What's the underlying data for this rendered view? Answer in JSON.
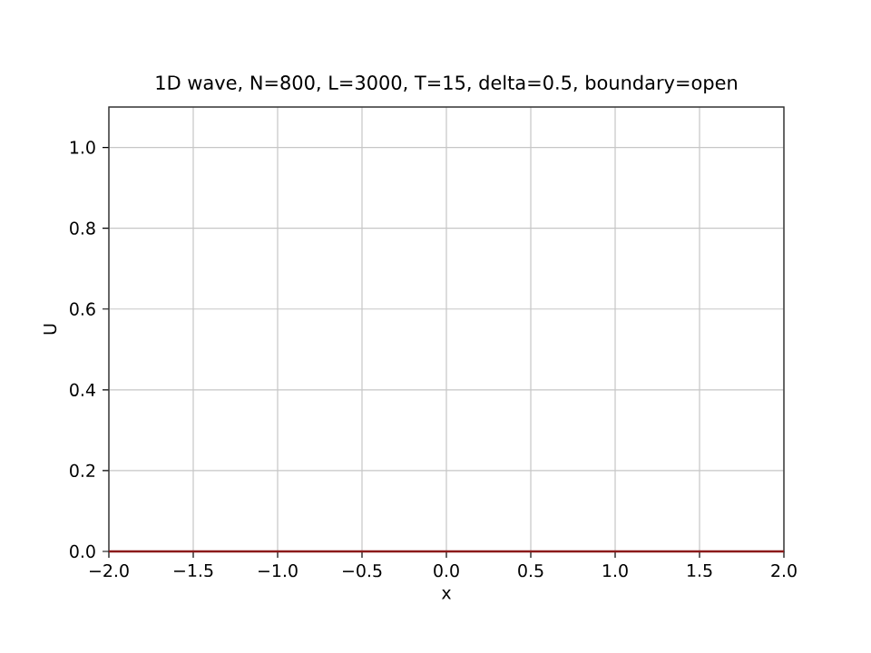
{
  "chart_data": {
    "type": "line",
    "title": "1D wave, N=800, L=3000, T=15, delta=0.5, boundary=open",
    "xlabel": "x",
    "ylabel": "U",
    "x": [
      -2.0,
      2.0
    ],
    "series": [
      {
        "color": "#8b1a1a",
        "values": [
          0,
          0
        ]
      }
    ],
    "xlim": [
      -2.0,
      2.0
    ],
    "ylim": [
      0.0,
      1.1
    ],
    "xticks": [
      {
        "value": -2.0,
        "label": "−2.0"
      },
      {
        "value": -1.5,
        "label": "−1.5"
      },
      {
        "value": -1.0,
        "label": "−1.0"
      },
      {
        "value": -0.5,
        "label": "−0.5"
      },
      {
        "value": 0.0,
        "label": "0.0"
      },
      {
        "value": 0.5,
        "label": "0.5"
      },
      {
        "value": 1.0,
        "label": "1.0"
      },
      {
        "value": 1.5,
        "label": "1.5"
      },
      {
        "value": 2.0,
        "label": "2.0"
      }
    ],
    "yticks": [
      {
        "value": 0.0,
        "label": "0.0"
      },
      {
        "value": 0.2,
        "label": "0.2"
      },
      {
        "value": 0.4,
        "label": "0.4"
      },
      {
        "value": 0.6,
        "label": "0.6"
      },
      {
        "value": 0.8,
        "label": "0.8"
      },
      {
        "value": 1.0,
        "label": "1.0"
      }
    ],
    "grid": true
  }
}
